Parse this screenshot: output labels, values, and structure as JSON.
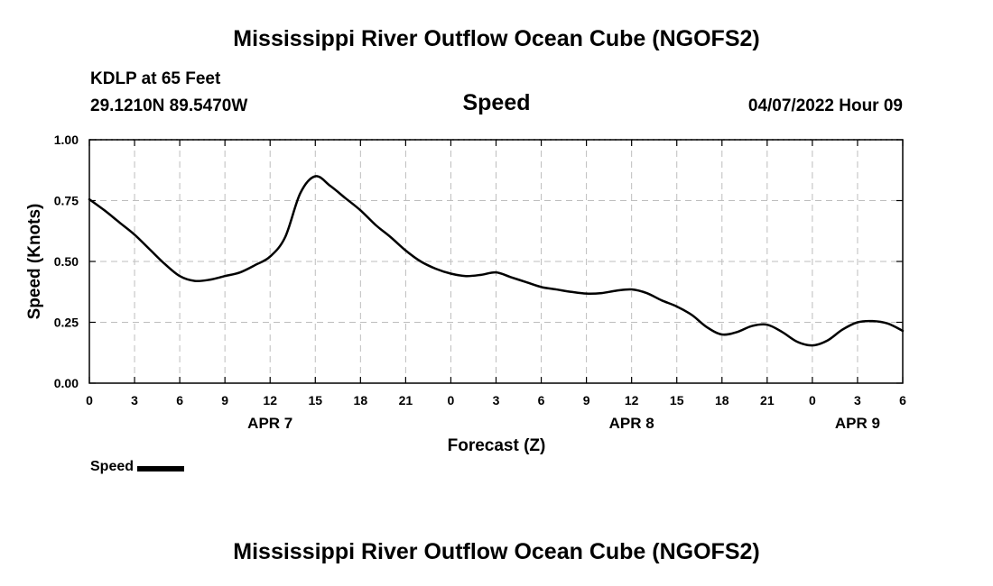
{
  "header": {
    "title": "Mississippi River Outflow Ocean Cube (NGOFS2)",
    "station": "KDLP at 65 Feet",
    "coords": "29.1210N  89.5470W",
    "date_hour": "04/07/2022 Hour 09"
  },
  "footer": {
    "title": "Mississippi River Outflow Ocean Cube (NGOFS2)"
  },
  "chart_data": {
    "type": "line",
    "title": "Speed",
    "xlabel": "Forecast (Z)",
    "ylabel": "Speed (Knots)",
    "xlim": [
      0,
      54
    ],
    "ylim": [
      0,
      1
    ],
    "grid": true,
    "x_ticks": [
      {
        "value": 0,
        "label": "0"
      },
      {
        "value": 3,
        "label": "3"
      },
      {
        "value": 6,
        "label": "6"
      },
      {
        "value": 9,
        "label": "9"
      },
      {
        "value": 12,
        "label": "12"
      },
      {
        "value": 15,
        "label": "15"
      },
      {
        "value": 18,
        "label": "18"
      },
      {
        "value": 21,
        "label": "21"
      },
      {
        "value": 24,
        "label": "0"
      },
      {
        "value": 27,
        "label": "3"
      },
      {
        "value": 30,
        "label": "6"
      },
      {
        "value": 33,
        "label": "9"
      },
      {
        "value": 36,
        "label": "12"
      },
      {
        "value": 39,
        "label": "15"
      },
      {
        "value": 42,
        "label": "18"
      },
      {
        "value": 45,
        "label": "21"
      },
      {
        "value": 48,
        "label": "0"
      },
      {
        "value": 51,
        "label": "3"
      },
      {
        "value": 54,
        "label": "6"
      }
    ],
    "y_ticks": [
      {
        "value": 0,
        "label": "0.00"
      },
      {
        "value": 0.25,
        "label": "0.25"
      },
      {
        "value": 0.5,
        "label": "0.50"
      },
      {
        "value": 0.75,
        "label": "0.75"
      },
      {
        "value": 1,
        "label": "1.00"
      }
    ],
    "date_labels": [
      {
        "value": 12,
        "label": "APR 7"
      },
      {
        "value": 36,
        "label": "APR 8"
      },
      {
        "value": 51,
        "label": "APR 9"
      }
    ],
    "legend": {
      "position": "bottom-left",
      "label": "Speed"
    },
    "series": [
      {
        "name": "Speed",
        "color": "#000000",
        "x": [
          0,
          1,
          2,
          3,
          4,
          5,
          6,
          7,
          8,
          9,
          10,
          11,
          12,
          13,
          14,
          15,
          16,
          17,
          18,
          19,
          20,
          21,
          22,
          23,
          24,
          25,
          26,
          27,
          28,
          29,
          30,
          31,
          32,
          33,
          34,
          35,
          36,
          37,
          38,
          39,
          40,
          41,
          42,
          43,
          44,
          45,
          46,
          47,
          48,
          49,
          50,
          51,
          52,
          53,
          54
        ],
        "values": [
          0.755,
          0.71,
          0.66,
          0.61,
          0.55,
          0.49,
          0.44,
          0.42,
          0.425,
          0.44,
          0.455,
          0.485,
          0.52,
          0.6,
          0.78,
          0.85,
          0.81,
          0.76,
          0.71,
          0.65,
          0.6,
          0.545,
          0.5,
          0.47,
          0.45,
          0.44,
          0.445,
          0.455,
          0.435,
          0.415,
          0.395,
          0.385,
          0.375,
          0.368,
          0.37,
          0.38,
          0.385,
          0.37,
          0.34,
          0.315,
          0.28,
          0.23,
          0.2,
          0.21,
          0.235,
          0.24,
          0.21,
          0.17,
          0.155,
          0.175,
          0.22,
          0.25,
          0.255,
          0.245,
          0.215
        ]
      }
    ]
  }
}
